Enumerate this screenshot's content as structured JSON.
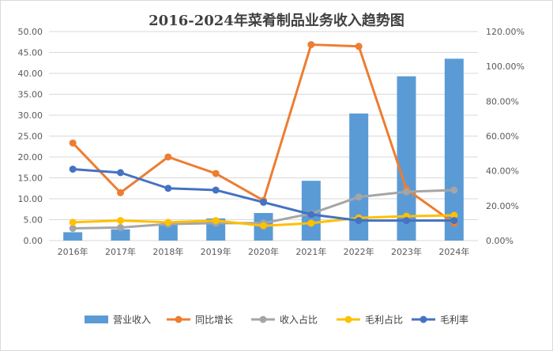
{
  "chart_data": {
    "type": "bar+line",
    "title": "2016-2024年菜肴制品业务收入趋势图",
    "categories": [
      "2016年",
      "2017年",
      "2018年",
      "2019年",
      "2020年",
      "2021年",
      "2022年",
      "2023年",
      "2024年"
    ],
    "y_left": {
      "ylim": [
        0,
        50
      ],
      "ticks": [
        "0.00",
        "5.00",
        "10.00",
        "15.00",
        "20.00",
        "25.00",
        "30.00",
        "35.00",
        "40.00",
        "45.00",
        "50.00"
      ]
    },
    "y_right": {
      "ylim": [
        0,
        120
      ],
      "ticks": [
        "0.00%",
        "20.00%",
        "40.00%",
        "60.00%",
        "80.00%",
        "100.00%",
        "120.00%"
      ]
    },
    "grid": true,
    "legend_position": "bottom",
    "series": [
      {
        "name": "营业收入",
        "type": "bar",
        "axis": "left",
        "color": "#5b9bd5",
        "values": [
          2.0,
          2.7,
          3.9,
          5.3,
          6.6,
          14.3,
          30.4,
          39.3,
          43.5
        ]
      },
      {
        "name": "同比增长",
        "type": "line",
        "axis": "right",
        "color": "#ed7d31",
        "values": [
          56.0,
          27.5,
          48.0,
          38.5,
          23.0,
          112.5,
          111.5,
          29.5,
          10.0
        ]
      },
      {
        "name": "收入占比",
        "type": "line",
        "axis": "right",
        "color": "#a5a5a5",
        "values": [
          7.0,
          7.5,
          9.5,
          10.0,
          10.0,
          15.5,
          25.0,
          28.0,
          29.0
        ]
      },
      {
        "name": "毛利占比",
        "type": "line",
        "axis": "right",
        "color": "#ffc000",
        "values": [
          10.5,
          11.5,
          10.5,
          11.5,
          8.5,
          10.0,
          13.0,
          14.0,
          14.5
        ]
      },
      {
        "name": "毛利率",
        "type": "line",
        "axis": "right",
        "color": "#4472c4",
        "values": [
          41.0,
          39.0,
          30.0,
          29.0,
          22.0,
          15.0,
          11.5,
          11.5,
          11.5
        ]
      }
    ]
  }
}
